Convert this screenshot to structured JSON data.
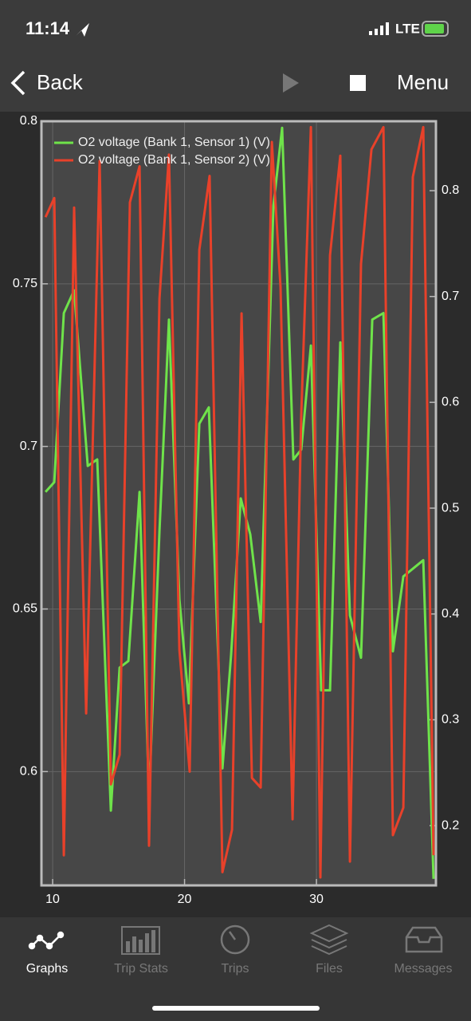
{
  "status_bar": {
    "time": "11:14",
    "network": "LTE"
  },
  "nav": {
    "back": "Back",
    "menu": "Menu"
  },
  "chart_data": {
    "type": "line",
    "xlim": [
      9.15,
      39.06
    ],
    "xticks": [
      10,
      20,
      30
    ],
    "ylim": [
      0.565,
      0.8
    ],
    "yticks": [
      0.6,
      0.65,
      0.7,
      0.75,
      0.8
    ],
    "y2lim": [
      0.1435,
      0.8656
    ],
    "y2ticks": [
      0.2,
      0.3,
      0.4,
      0.5,
      0.6,
      0.7,
      0.8
    ],
    "grid": true,
    "legend": "top-left",
    "series": [
      {
        "name": "O2 voltage (Bank 1, Sensor 1) (V)",
        "color": "#6fe34a",
        "x": [
          9.46,
          10.12,
          10.85,
          11.63,
          12.66,
          13.38,
          14.41,
          15.08,
          15.74,
          16.59,
          17.31,
          18.1,
          18.82,
          19.61,
          20.33,
          21.12,
          21.84,
          22.87,
          23.53,
          24.26,
          24.98,
          25.77,
          26.74,
          27.4,
          28.25,
          28.85,
          29.58,
          30.36,
          31.03,
          31.81,
          32.54,
          33.38,
          34.23,
          35.08,
          35.8,
          36.59,
          37.19,
          38.1,
          38.88
        ],
        "values": [
          0.686,
          0.689,
          0.741,
          0.748,
          0.694,
          0.696,
          0.588,
          0.632,
          0.634,
          0.686,
          0.592,
          0.674,
          0.739,
          0.653,
          0.621,
          0.707,
          0.712,
          0.601,
          0.636,
          0.684,
          0.673,
          0.646,
          0.774,
          0.798,
          0.696,
          0.699,
          0.731,
          0.625,
          0.625,
          0.732,
          0.648,
          0.635,
          0.739,
          0.741,
          0.637,
          0.66,
          0.662,
          0.665,
          0.567
        ]
      },
      {
        "name": "O2 voltage (Bank 1, Sensor 2) (V)",
        "color": "#e8412a",
        "axis": "y2",
        "x": [
          9.46,
          10.12,
          10.85,
          11.63,
          12.54,
          13.56,
          14.41,
          15.08,
          15.86,
          16.59,
          17.31,
          18.1,
          18.82,
          19.61,
          20.39,
          21.12,
          21.9,
          22.87,
          23.6,
          24.32,
          25.11,
          25.77,
          26.62,
          27.28,
          28.19,
          28.85,
          29.58,
          30.3,
          31.03,
          31.81,
          32.54,
          33.38,
          34.17,
          35.08,
          35.8,
          36.59,
          37.31,
          38.1,
          38.88
        ],
        "values": [
          0.775,
          0.793,
          0.172,
          0.784,
          0.306,
          0.828,
          0.239,
          0.267,
          0.789,
          0.823,
          0.181,
          0.698,
          0.834,
          0.366,
          0.251,
          0.744,
          0.814,
          0.156,
          0.196,
          0.684,
          0.245,
          0.236,
          0.846,
          0.709,
          0.206,
          0.588,
          0.86,
          0.151,
          0.739,
          0.833,
          0.166,
          0.731,
          0.839,
          0.86,
          0.191,
          0.217,
          0.813,
          0.86,
          0.172
        ]
      }
    ]
  },
  "tab_bar": {
    "tabs": [
      "Graphs",
      "Trip Stats",
      "Trips",
      "Files",
      "Messages"
    ]
  }
}
